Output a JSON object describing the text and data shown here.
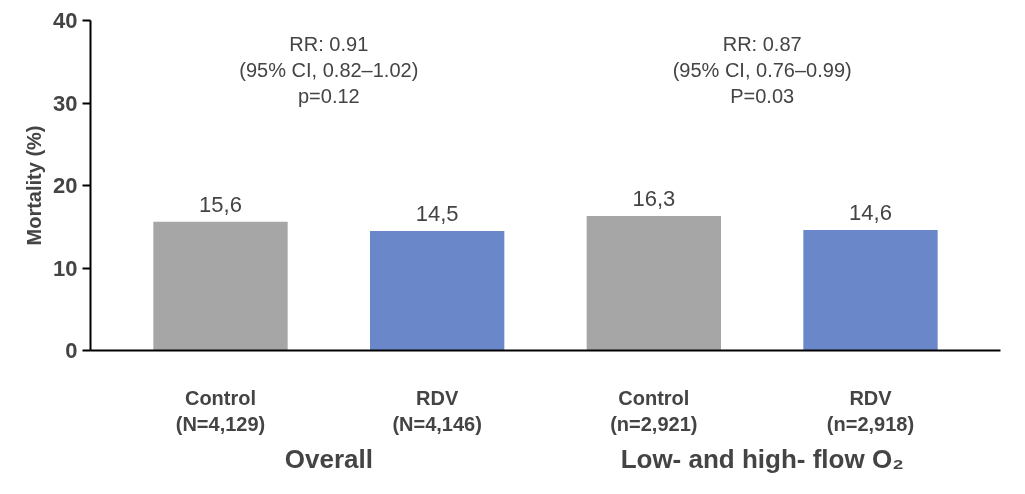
{
  "chart_data": {
    "type": "bar",
    "ylabel": "Mortality (%)",
    "categories": [
      "Control\n(N=4,129)",
      "RDV\n(N=4,146)",
      "Control\n(n=2,921)",
      "RDV\n(n=2,918)"
    ],
    "values": [
      15.6,
      14.5,
      16.3,
      14.6
    ],
    "colors": [
      "#a6a6a6",
      "#6a88c9",
      "#a6a6a6",
      "#6a88c9"
    ],
    "value_labels": [
      "15,6",
      "14,5",
      "16,3",
      "14,6"
    ],
    "ylim": [
      0,
      40
    ],
    "yticks": [
      0,
      10,
      20,
      30,
      40
    ],
    "grid": false,
    "annotations": [
      "RR: 0.91\n(95% CI, 0.82–1.02)\np=0.12",
      "RR: 0.87\n(95% CI, 0.76–0.99)\nP=0.03",
      "Overall",
      "Low- and high- flow O₂"
    ]
  }
}
